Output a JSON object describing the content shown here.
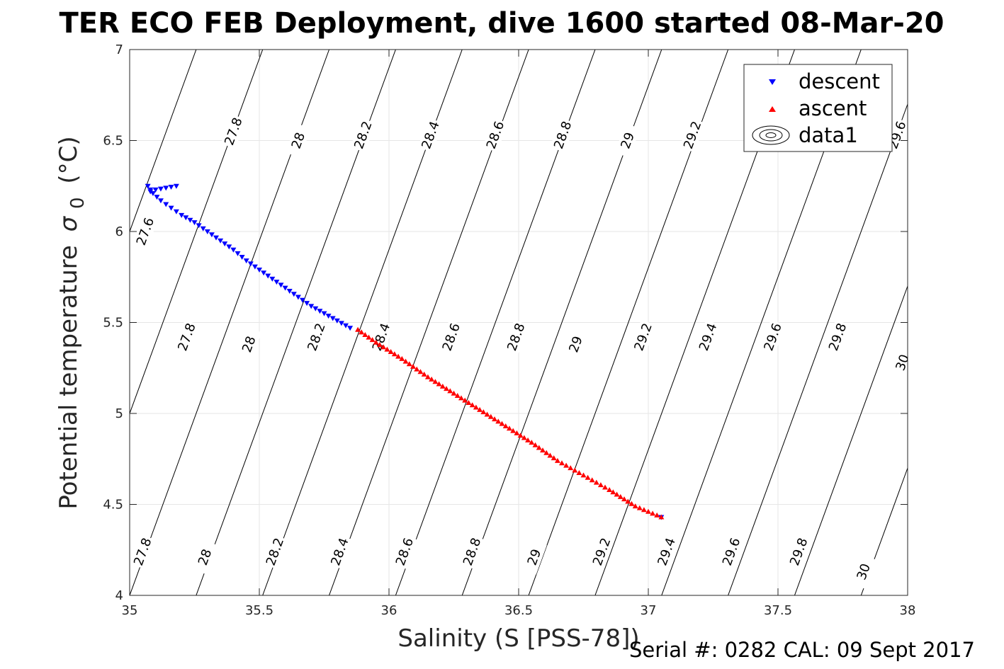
{
  "title": "TER ECO FEB Deployment, dive 1600 started 08-Mar-20",
  "footer": "Serial #: 0282  CAL: 09 Sept 2017",
  "colors": {
    "descent": "#0000ff",
    "ascent": "#ff0000",
    "contour": "#000000",
    "grid": "#e6e6e6"
  },
  "chart_data": {
    "type": "scatter",
    "xlabel": "Salinity (S [PSS-78])",
    "ylabel": "Potential temperature",
    "ylabel_symbol": "σ",
    "ylabel_sub": "0",
    "ylabel_unit": "(°C)",
    "xlim": [
      35,
      38
    ],
    "ylim": [
      4,
      7
    ],
    "xticks": [
      35,
      35.5,
      36,
      36.5,
      37,
      37.5,
      38
    ],
    "xtick_labels": [
      "35",
      "35.5",
      "36",
      "36.5",
      "37",
      "37.5",
      "38"
    ],
    "yticks": [
      4,
      4.5,
      5,
      5.5,
      6,
      6.5,
      7
    ],
    "ytick_labels": [
      "4",
      "4.5",
      "5",
      "5.5",
      "6",
      "6.5",
      "7"
    ],
    "grid": true,
    "legend": {
      "position": "top-right",
      "entries": [
        "descent",
        "ascent",
        "data1"
      ]
    },
    "series": [
      {
        "name": "descent",
        "marker": "triangle-down",
        "x": [
          35.18,
          35.14,
          35.1,
          35.08,
          35.07,
          35.09,
          35.12,
          35.16,
          35.2,
          35.25,
          35.3,
          35.35,
          35.4,
          35.45,
          35.5,
          35.55,
          35.6,
          35.65,
          35.7,
          35.75,
          35.8,
          35.85,
          37.05
        ],
        "y": [
          6.25,
          6.24,
          6.23,
          6.22,
          6.25,
          6.21,
          6.17,
          6.13,
          6.09,
          6.05,
          6.0,
          5.95,
          5.9,
          5.84,
          5.79,
          5.74,
          5.69,
          5.64,
          5.59,
          5.55,
          5.51,
          5.47,
          4.43
        ]
      },
      {
        "name": "ascent",
        "marker": "triangle-up",
        "x": [
          35.88,
          35.95,
          36.05,
          36.15,
          36.25,
          36.35,
          36.45,
          36.55,
          36.65,
          36.75,
          36.85,
          36.95,
          37.05
        ],
        "y": [
          5.46,
          5.39,
          5.3,
          5.2,
          5.11,
          5.02,
          4.93,
          4.84,
          4.74,
          4.66,
          4.58,
          4.49,
          4.43
        ]
      }
    ],
    "contours": {
      "levels": [
        27.6,
        27.8,
        28,
        28.2,
        28.4,
        28.6,
        28.8,
        29,
        29.2,
        29.4,
        29.6,
        29.8,
        30
      ],
      "labels": [
        {
          "text": "27.6",
          "s": 35.06,
          "t": 6.0
        },
        {
          "text": "27.8",
          "s": 35.4,
          "t": 6.55
        },
        {
          "text": "28",
          "s": 35.65,
          "t": 6.5
        },
        {
          "text": "28.2",
          "s": 35.9,
          "t": 6.53
        },
        {
          "text": "28.4",
          "s": 36.16,
          "t": 6.53
        },
        {
          "text": "28.6",
          "s": 36.41,
          "t": 6.53
        },
        {
          "text": "28.8",
          "s": 36.67,
          "t": 6.53
        },
        {
          "text": "29",
          "s": 36.92,
          "t": 6.5
        },
        {
          "text": "29.2",
          "s": 37.17,
          "t": 6.53
        },
        {
          "text": "29.6",
          "s": 37.96,
          "t": 6.53
        },
        {
          "text": "27.8",
          "s": 35.22,
          "t": 5.42
        },
        {
          "text": "28",
          "s": 35.46,
          "t": 5.38
        },
        {
          "text": "28.2",
          "s": 35.72,
          "t": 5.42
        },
        {
          "text": "28.4",
          "s": 35.97,
          "t": 5.42
        },
        {
          "text": "28.6",
          "s": 36.24,
          "t": 5.42
        },
        {
          "text": "28.8",
          "s": 36.49,
          "t": 5.42
        },
        {
          "text": "29",
          "s": 36.72,
          "t": 5.38
        },
        {
          "text": "29.2",
          "s": 36.98,
          "t": 5.42
        },
        {
          "text": "29.4",
          "s": 37.23,
          "t": 5.42
        },
        {
          "text": "29.6",
          "s": 37.48,
          "t": 5.42
        },
        {
          "text": "29.8",
          "s": 37.73,
          "t": 5.42
        },
        {
          "text": "30",
          "s": 37.98,
          "t": 5.28
        },
        {
          "text": "27.8",
          "s": 35.05,
          "t": 4.24
        },
        {
          "text": "28",
          "s": 35.29,
          "t": 4.21
        },
        {
          "text": "28.2",
          "s": 35.56,
          "t": 4.24
        },
        {
          "text": "28.4",
          "s": 35.81,
          "t": 4.24
        },
        {
          "text": "28.6",
          "s": 36.06,
          "t": 4.24
        },
        {
          "text": "28.8",
          "s": 36.32,
          "t": 4.24
        },
        {
          "text": "29",
          "s": 36.56,
          "t": 4.21
        },
        {
          "text": "29.2",
          "s": 36.82,
          "t": 4.24
        },
        {
          "text": "29.4",
          "s": 37.07,
          "t": 4.24
        },
        {
          "text": "29.6",
          "s": 37.32,
          "t": 4.24
        },
        {
          "text": "29.8",
          "s": 37.58,
          "t": 4.24
        },
        {
          "text": "30",
          "s": 37.83,
          "t": 4.13
        }
      ]
    }
  }
}
